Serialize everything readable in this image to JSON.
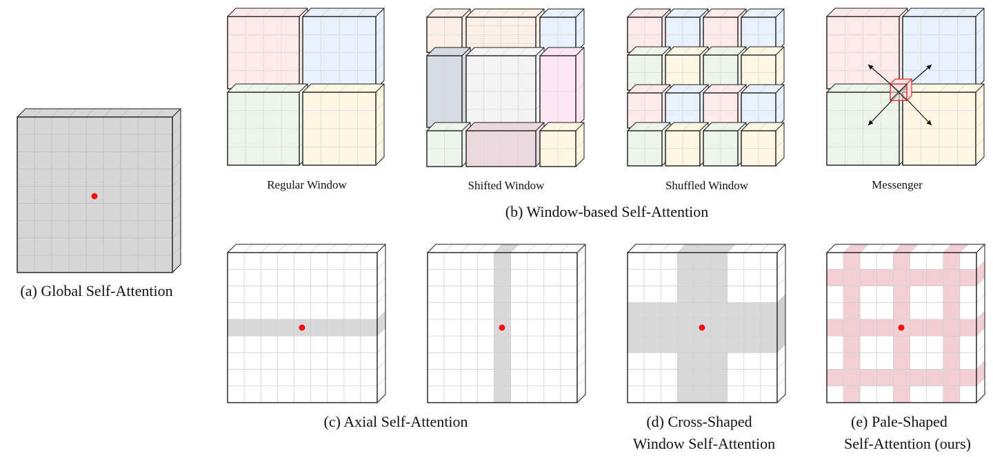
{
  "captions": {
    "global": "(a) Global Self-Attention",
    "window_group": "(b) Window-based Self-Attention",
    "regular": "Regular Window",
    "shifted": "Shifted Window",
    "shuffled": "Shuffled Window",
    "messenger": "Messenger",
    "axial": "(c) Axial Self-Attention",
    "cross_line1": "(d) Cross-Shaped",
    "cross_line2": "Window Self-Attention",
    "pale_line1": "(e) Pale-Shaped",
    "pale_line2": "Self-Attention (ours)"
  },
  "colors": {
    "grid_gray": "#d6d6d6",
    "highlight_gray": "#d8d8d8",
    "query_red": "#ee1111",
    "pale_pink": "#f2cfd4",
    "window_pink": "#fde9ea",
    "window_blue": "#e8f0fb",
    "window_green": "#edf4ea",
    "window_yellow": "#fcf6e3",
    "window_orange": "#fcefe5",
    "window_slate": "#d6dbe3",
    "window_lightgray": "#f3f3f3",
    "window_magenta": "#fde6f2",
    "window_mauve": "#edd8de",
    "messenger_box": "#dd3333"
  },
  "panels": [
    {
      "id": "global",
      "grid": 8,
      "highlight": "all"
    },
    {
      "id": "regular-window",
      "windows": "2x2"
    },
    {
      "id": "shifted-window",
      "windows": "3x3 shifted"
    },
    {
      "id": "shuffled-window",
      "windows": "4x4 shuffled"
    },
    {
      "id": "messenger",
      "windows": "2x2 with messenger"
    },
    {
      "id": "axial-row",
      "grid": 9,
      "highlight": "row"
    },
    {
      "id": "axial-col",
      "grid": 9,
      "highlight": "column"
    },
    {
      "id": "cross-shaped",
      "grid": 9,
      "highlight": "cross"
    },
    {
      "id": "pale-shaped",
      "grid": 9,
      "highlight": "pale"
    }
  ]
}
